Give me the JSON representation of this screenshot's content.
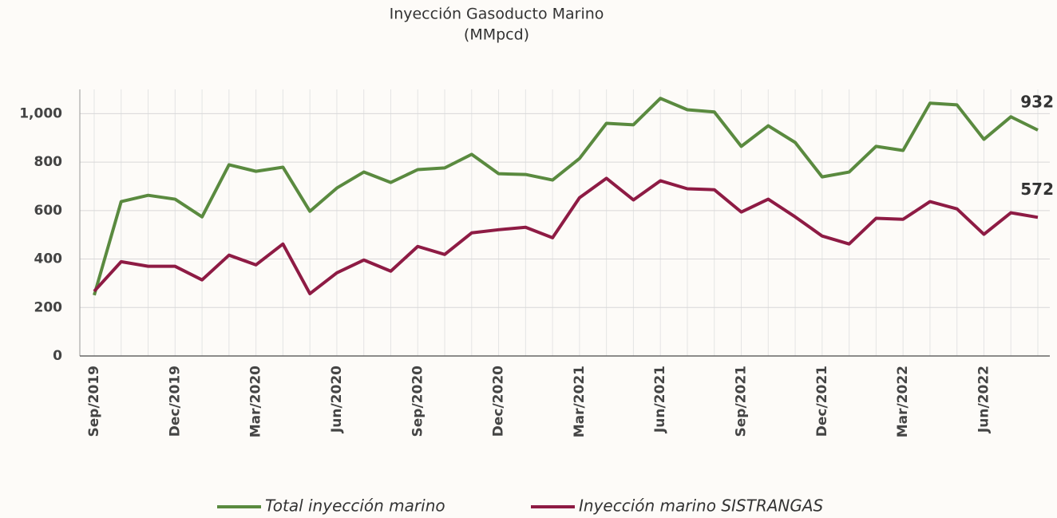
{
  "chart_data": {
    "type": "line",
    "title": "Inyección Gasoducto Marino",
    "subtitle": "(MMpcd)",
    "categories": [
      "Sep/2019",
      null,
      null,
      "Dec/2019",
      null,
      null,
      "Mar/2020",
      null,
      null,
      "Jun/2020",
      null,
      null,
      "Sep/2020",
      null,
      null,
      "Dec/2020",
      null,
      null,
      "Mar/2021",
      null,
      null,
      "Jun/2021",
      null,
      null,
      "Sep/2021",
      null,
      null,
      "Dec/2021",
      null,
      null,
      "Mar/2022",
      null,
      null,
      "Jun/2022",
      null,
      null
    ],
    "series": [
      {
        "name": "Total inyección marino",
        "color": "#5a8a3f",
        "values": [
          251,
          637,
          663,
          647,
          574,
          789,
          762,
          779,
          597,
          693,
          759,
          716,
          769,
          776,
          832,
          752,
          749,
          726,
          815,
          960,
          954,
          1063,
          1016,
          1007,
          865,
          950,
          881,
          739,
          759,
          865,
          848,
          1043,
          1036,
          894,
          987,
          932
        ]
      },
      {
        "name": "Inyección marino SISTRANGAS",
        "color": "#8e1b44",
        "values": [
          267,
          389,
          370,
          370,
          314,
          416,
          376,
          462,
          257,
          343,
          396,
          350,
          452,
          419,
          508,
          521,
          531,
          488,
          653,
          733,
          644,
          723,
          690,
          686,
          594,
          647,
          574,
          495,
          462,
          568,
          564,
          637,
          607,
          502,
          591,
          572
        ]
      }
    ],
    "ylim": [
      0,
      1100
    ],
    "yticks": [
      0,
      200,
      400,
      600,
      800,
      {
        "value": 1000,
        "label": "1,000"
      }
    ],
    "grid": true
  }
}
